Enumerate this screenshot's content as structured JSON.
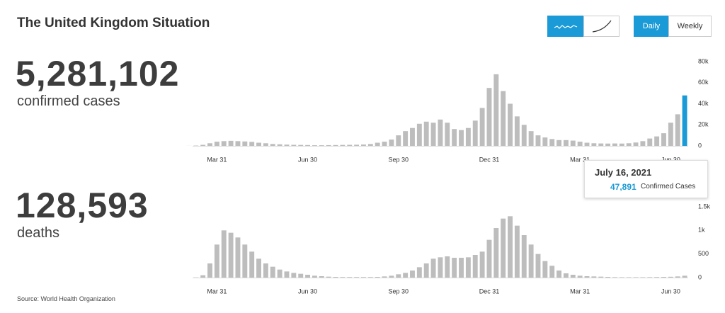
{
  "header": {
    "title": "The United Kingdom Situation",
    "toggle": [
      "Daily",
      "Weekly"
    ]
  },
  "source": "Source: World Health Organization",
  "chart_data": [
    {
      "type": "bar",
      "total": "5,281,102",
      "measure": "confirmed cases",
      "color": "#bdbdbd",
      "highlight_color": "#1a9ad6",
      "categories": [
        null,
        null,
        null,
        null,
        "Mar 31",
        null,
        null,
        null,
        null,
        null,
        null,
        null,
        null,
        null,
        null,
        null,
        null,
        "Jun 30",
        null,
        null,
        null,
        null,
        null,
        null,
        null,
        null,
        null,
        null,
        null,
        null,
        "Sep 30",
        null,
        null,
        null,
        null,
        null,
        null,
        null,
        null,
        null,
        null,
        null,
        null,
        "Dec 31",
        null,
        null,
        null,
        null,
        null,
        null,
        null,
        null,
        null,
        null,
        null,
        null,
        "Mar 31",
        null,
        null,
        null,
        null,
        null,
        null,
        null,
        null,
        null,
        null,
        null,
        null,
        "Jun 30",
        null,
        null
      ],
      "values": [
        50,
        300,
        1000,
        2500,
        4000,
        4500,
        4800,
        4500,
        4200,
        3800,
        3000,
        2500,
        1800,
        1500,
        1200,
        1000,
        900,
        800,
        600,
        600,
        700,
        800,
        900,
        1000,
        1100,
        1300,
        1800,
        3000,
        4000,
        6000,
        10000,
        14000,
        17000,
        21000,
        23000,
        22000,
        25000,
        22000,
        16000,
        15000,
        17000,
        24000,
        36000,
        55000,
        68000,
        52000,
        40000,
        28000,
        20000,
        14000,
        10000,
        8000,
        6500,
        5500,
        5500,
        5000,
        4000,
        3000,
        2500,
        2300,
        2200,
        2300,
        2200,
        2500,
        3200,
        4500,
        7000,
        9000,
        12000,
        22000,
        30000,
        47891
      ],
      "ylim": [
        0,
        80000
      ],
      "yticks": [
        0,
        {
          "value": 20000,
          "label": "20k"
        },
        {
          "value": 40000,
          "label": "40k"
        },
        {
          "value": 60000,
          "label": "60k"
        },
        {
          "value": 80000,
          "label": "80k"
        }
      ],
      "tooltip": {
        "date": "July 16, 2021",
        "value": "47,891",
        "label": "Confirmed Cases"
      }
    },
    {
      "type": "bar",
      "total": "128,593",
      "measure": "deaths",
      "color": "#bdbdbd",
      "categories": [
        null,
        null,
        null,
        null,
        "Mar 31",
        null,
        null,
        null,
        null,
        null,
        null,
        null,
        null,
        null,
        null,
        null,
        null,
        "Jun 30",
        null,
        null,
        null,
        null,
        null,
        null,
        null,
        null,
        null,
        null,
        null,
        null,
        "Sep 30",
        null,
        null,
        null,
        null,
        null,
        null,
        null,
        null,
        null,
        null,
        null,
        null,
        "Dec 31",
        null,
        null,
        null,
        null,
        null,
        null,
        null,
        null,
        null,
        null,
        null,
        null,
        "Mar 31",
        null,
        null,
        null,
        null,
        null,
        null,
        null,
        null,
        null,
        null,
        null,
        null,
        "Jun 30",
        null,
        null
      ],
      "values": [
        0,
        5,
        50,
        300,
        700,
        1000,
        950,
        850,
        700,
        550,
        400,
        300,
        230,
        170,
        130,
        100,
        80,
        60,
        40,
        30,
        20,
        15,
        12,
        12,
        12,
        12,
        12,
        15,
        25,
        40,
        70,
        100,
        150,
        220,
        300,
        400,
        430,
        450,
        420,
        420,
        430,
        480,
        550,
        800,
        1050,
        1250,
        1300,
        1100,
        900,
        700,
        500,
        350,
        250,
        150,
        90,
        60,
        40,
        30,
        25,
        20,
        15,
        10,
        8,
        8,
        8,
        8,
        10,
        12,
        15,
        18,
        25,
        40
      ],
      "ylim": [
        0,
        1800
      ],
      "yticks": [
        0,
        500,
        {
          "value": 1000,
          "label": "1k"
        },
        {
          "value": 1500,
          "label": "1.5k"
        }
      ]
    }
  ]
}
